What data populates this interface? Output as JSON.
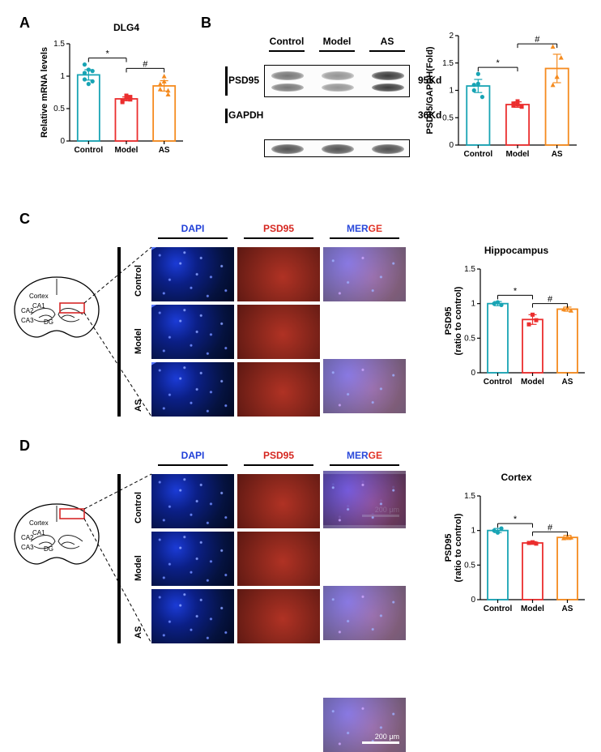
{
  "colors": {
    "control": "#18a4b4",
    "model": "#eb2e2e",
    "as": "#f58b1f",
    "black": "#000000",
    "white": "#ffffff",
    "dapi": "#1f3fd8",
    "psd95": "#d5261f",
    "merge_blue": "#2a49da",
    "merge_red": "#e13226"
  },
  "panelA": {
    "label": "A",
    "title": "DLG4",
    "ylabel": "Relative mRNA levels",
    "ylim": [
      0,
      1.5
    ],
    "ytick_step": 0.5,
    "categories": [
      "Control",
      "Model",
      "AS"
    ],
    "means": [
      1.02,
      0.65,
      0.85
    ],
    "errs": [
      0.08,
      0.03,
      0.08
    ],
    "bar_colors": [
      "#18a4b4",
      "#eb2e2e",
      "#f58b1f"
    ],
    "points": {
      "Control": [
        1.05,
        1.1,
        0.92,
        1.18,
        0.88,
        1.08,
        0.95
      ],
      "Model": [
        0.62,
        0.7,
        0.64,
        0.6,
        0.66,
        0.68
      ],
      "AS": [
        0.8,
        1.0,
        0.78,
        0.88,
        0.92,
        0.72
      ]
    },
    "marker_shapes": [
      "circle",
      "square",
      "triangle"
    ],
    "sig": [
      {
        "from": "Control",
        "to": "Model",
        "label": "*",
        "y": 1.28
      },
      {
        "from": "Model",
        "to": "AS",
        "label": "#",
        "y": 1.12
      }
    ],
    "bar_width": 0.58,
    "title_fontsize": 12,
    "label_fontsize": 11
  },
  "panelB": {
    "label": "B",
    "groups": [
      "Control",
      "Model",
      "AS"
    ],
    "proteins": [
      {
        "name": "PSD95",
        "kd": "95Kd",
        "band_rows": 2,
        "intensity": {
          "Control": 0.55,
          "Model": 0.35,
          "AS": 0.95
        }
      },
      {
        "name": "GAPDH",
        "kd": "36Kd",
        "band_rows": 1,
        "intensity": {
          "Control": 0.8,
          "Model": 0.8,
          "AS": 0.82
        }
      }
    ],
    "chart": {
      "ylabel": "PSD95/GAPDH(Fold)",
      "ylim": [
        0,
        2.0
      ],
      "ytick_step": 0.5,
      "categories": [
        "Control",
        "Model",
        "AS"
      ],
      "means": [
        1.08,
        0.74,
        1.4
      ],
      "errs": [
        0.12,
        0.05,
        0.26
      ],
      "bar_colors": [
        "#18a4b4",
        "#eb2e2e",
        "#f58b1f"
      ],
      "points": {
        "Control": [
          1.1,
          1.3,
          0.88,
          1.0,
          1.12
        ],
        "Model": [
          0.72,
          0.8,
          0.7,
          0.76,
          0.74
        ],
        "AS": [
          1.8,
          1.25,
          1.6,
          1.1,
          1.25
        ]
      },
      "marker_shapes": [
        "circle",
        "square",
        "triangle"
      ],
      "sig": [
        {
          "from": "Control",
          "to": "Model",
          "label": "*",
          "y": 1.42
        },
        {
          "from": "Model",
          "to": "AS",
          "label": "#",
          "y": 1.85
        }
      ],
      "bar_width": 0.58
    }
  },
  "panelC": {
    "label": "C",
    "region_title": "Hippocampus",
    "brain": {
      "labels": [
        "Cortex",
        "CA1",
        "CA2",
        "CA3",
        "DG"
      ],
      "box_region": "CA1"
    },
    "columns": [
      "DAPI",
      "PSD95",
      "MERGE"
    ],
    "column_colors": {
      "DAPI": "#1f3fd8",
      "PSD95": "#d5261f",
      "MERGE_1": "#2a49da",
      "MERGE_2": "#e13226"
    },
    "rows": [
      "Control",
      "Model",
      "AS"
    ],
    "scale_bar": "200 μm",
    "image_arc": true,
    "chart": {
      "ylabel": "PSD95",
      "ylabel2": "(ratio to control)",
      "ylim": [
        0,
        1.5
      ],
      "ytick_step": 0.5,
      "categories": [
        "Control",
        "Model",
        "AS"
      ],
      "means": [
        1.0,
        0.77,
        0.92
      ],
      "errs": [
        0.03,
        0.07,
        0.03
      ],
      "bar_colors": [
        "#18a4b4",
        "#eb2e2e",
        "#f58b1f"
      ],
      "points": {
        "Control": [
          1.0,
          1.02,
          0.98
        ],
        "Model": [
          0.7,
          0.84,
          0.76
        ],
        "AS": [
          0.92,
          0.94,
          0.9
        ]
      },
      "marker_shapes": [
        "circle",
        "square",
        "triangle"
      ],
      "sig": [
        {
          "from": "Control",
          "to": "Model",
          "label": "*",
          "y": 1.12
        },
        {
          "from": "Model",
          "to": "AS",
          "label": "#",
          "y": 1.0
        }
      ],
      "bar_width": 0.58
    }
  },
  "panelD": {
    "label": "D",
    "region_title": "Cortex",
    "brain": {
      "labels": [
        "Cortex",
        "CA1",
        "CA2",
        "CA3",
        "DG"
      ],
      "box_region": "Cortex"
    },
    "columns": [
      "DAPI",
      "PSD95",
      "MERGE"
    ],
    "column_colors": {
      "DAPI": "#1f3fd8",
      "PSD95": "#d5261f",
      "MERGE_1": "#2a49da",
      "MERGE_2": "#e13226"
    },
    "rows": [
      "Control",
      "Model",
      "AS"
    ],
    "scale_bar": "200 μm",
    "image_arc": false,
    "chart": {
      "ylabel": "PSD95",
      "ylabel2": "(ratio to control)",
      "ylim": [
        0,
        1.5
      ],
      "ytick_step": 0.5,
      "categories": [
        "Control",
        "Model",
        "AS"
      ],
      "means": [
        1.0,
        0.82,
        0.9
      ],
      "errs": [
        0.03,
        0.02,
        0.03
      ],
      "bar_colors": [
        "#18a4b4",
        "#eb2e2e",
        "#f58b1f"
      ],
      "points": {
        "Control": [
          1.0,
          0.97,
          1.03
        ],
        "Model": [
          0.82,
          0.83,
          0.81
        ],
        "AS": [
          0.89,
          0.91,
          0.9
        ]
      },
      "marker_shapes": [
        "circle",
        "square",
        "triangle"
      ],
      "sig": [
        {
          "from": "Control",
          "to": "Model",
          "label": "*",
          "y": 1.1
        },
        {
          "from": "Model",
          "to": "AS",
          "label": "#",
          "y": 0.98
        }
      ],
      "bar_width": 0.58
    }
  }
}
